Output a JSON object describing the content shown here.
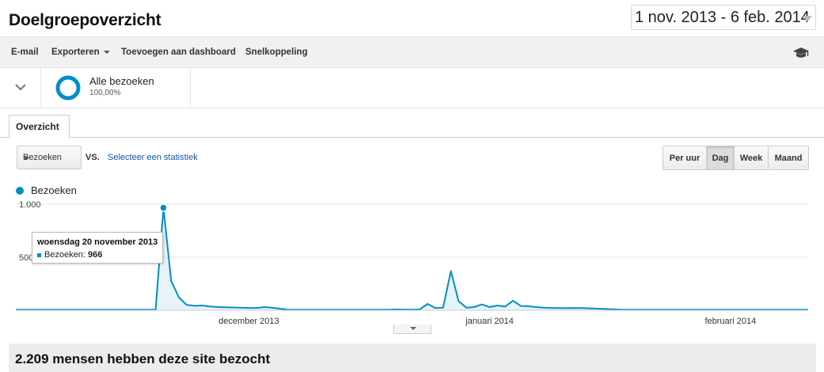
{
  "header": {
    "title": "Doelgroepoverzicht",
    "date_range": "1 nov. 2013 - 6 feb. 2014"
  },
  "toolbar": {
    "email": "E-mail",
    "export": "Exporteren",
    "add_to_dashboard": "Toevoegen aan dashboard",
    "shortcut": "Snelkoppeling",
    "academy_icon": "mortarboard-icon"
  },
  "segment": {
    "name": "Alle bezoeken",
    "percentage": "100,00%",
    "ring_color": "#058dc7"
  },
  "tabs": {
    "overview": "Overzicht"
  },
  "controls": {
    "metric": "Bezoeken",
    "vs": "VS.",
    "select_metric": "Selecteer een statistiek",
    "granularity": [
      {
        "label": "Per uur",
        "active": false
      },
      {
        "label": "Dag",
        "active": true
      },
      {
        "label": "Week",
        "active": false
      },
      {
        "label": "Maand",
        "active": false
      }
    ]
  },
  "chart_data": {
    "type": "area",
    "series": [
      {
        "name": "Bezoeken",
        "color": "#058dc7",
        "values": [
          5,
          5,
          5,
          5,
          5,
          6,
          5,
          5,
          5,
          5,
          5,
          5,
          5,
          5,
          5,
          5,
          5,
          5,
          5,
          966,
          275,
          120,
          50,
          42,
          45,
          35,
          30,
          28,
          26,
          24,
          22,
          22,
          30,
          25,
          15,
          6,
          5,
          5,
          5,
          5,
          5,
          5,
          5,
          5,
          5,
          5,
          5,
          5,
          5,
          8,
          7,
          6,
          8,
          60,
          22,
          25,
          370,
          85,
          25,
          30,
          55,
          30,
          45,
          35,
          90,
          40,
          38,
          30,
          25,
          22,
          20,
          20,
          22,
          20,
          18,
          15,
          12,
          8,
          6,
          5,
          5,
          5,
          5,
          5,
          5,
          5,
          5,
          5,
          5,
          5,
          5,
          5,
          5,
          5,
          5,
          5,
          5,
          5,
          5,
          5,
          5,
          5,
          5
        ]
      }
    ],
    "x_start": "2013-11-01",
    "x_end": "2014-02-06",
    "x_tick_labels": [
      "december 2013",
      "januari 2014",
      "februari 2014"
    ],
    "y_tick_labels": [
      "1.000",
      "500"
    ],
    "ylim": [
      0,
      1000
    ],
    "grid": true,
    "legend": "top-left",
    "highlight": {
      "index": 19,
      "date_label": "woensdag 20 november 2013",
      "series_label": "Bezoeken:",
      "value": "966"
    }
  },
  "summary": {
    "text": "2.209 mensen hebben deze site bezocht"
  }
}
